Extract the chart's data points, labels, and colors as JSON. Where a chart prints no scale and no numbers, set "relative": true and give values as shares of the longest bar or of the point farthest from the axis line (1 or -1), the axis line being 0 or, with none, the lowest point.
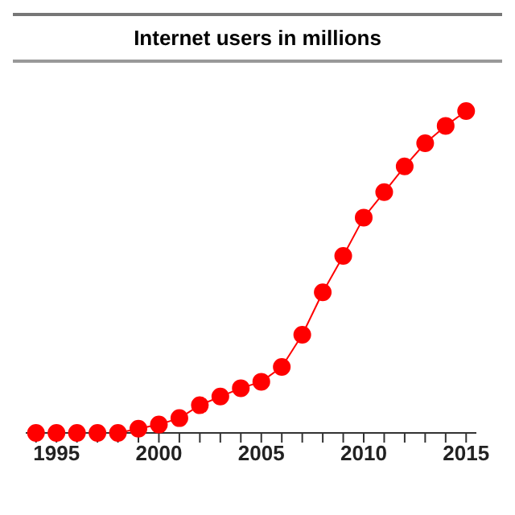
{
  "chart_data": {
    "type": "line",
    "title": "Internet users in millions",
    "relative": true,
    "x": [
      1994,
      1995,
      1996,
      1997,
      1998,
      1999,
      2000,
      2001,
      2002,
      2003,
      2004,
      2005,
      2006,
      2007,
      2008,
      2009,
      2010,
      2011,
      2012,
      2013,
      2014,
      2015
    ],
    "series": [
      {
        "color": "#ff0000",
        "values": [
          0,
          0,
          0,
          0,
          0,
          0.013,
          0.026,
          0.046,
          0.086,
          0.113,
          0.139,
          0.159,
          0.205,
          0.305,
          0.437,
          0.55,
          0.669,
          0.748,
          0.828,
          0.9,
          0.954,
          1
        ]
      }
    ],
    "xlim": [
      1993.5,
      2015.5
    ],
    "xticks": [
      {
        "value": 1994,
        "label": null
      },
      1995,
      {
        "value": 1996,
        "label": null
      },
      {
        "value": 1997,
        "label": null
      },
      {
        "value": 1998,
        "label": null
      },
      {
        "value": 1999,
        "label": null
      },
      2000,
      {
        "value": 2001,
        "label": null
      },
      {
        "value": 2002,
        "label": null
      },
      {
        "value": 2003,
        "label": null
      },
      {
        "value": 2004,
        "label": null
      },
      2005,
      {
        "value": 2006,
        "label": null
      },
      {
        "value": 2007,
        "label": null
      },
      {
        "value": 2008,
        "label": null
      },
      {
        "value": 2009,
        "label": null
      },
      2010,
      {
        "value": 2011,
        "label": null
      },
      {
        "value": 2012,
        "label": null
      },
      {
        "value": 2013,
        "label": null
      },
      {
        "value": 2014,
        "label": null
      },
      2015
    ],
    "marker": "circle",
    "legend": false,
    "grid": false
  }
}
